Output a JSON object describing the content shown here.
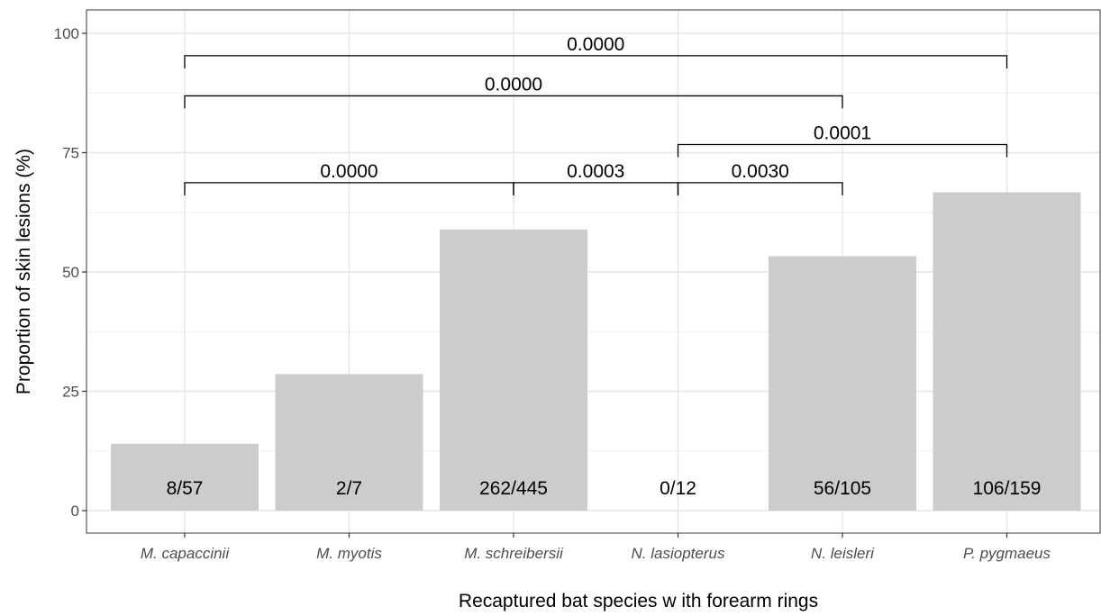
{
  "chart_data": {
    "type": "bar",
    "categories": [
      "M. capaccinii",
      "M. myotis",
      "M. schreibersii",
      "N. lasiopterus",
      "N. leisleri",
      "P. pygmaeus"
    ],
    "values": [
      14.0,
      28.6,
      58.9,
      0.0,
      53.3,
      66.7
    ],
    "bar_labels": [
      "8/57",
      "2/7",
      "262/445",
      "0/12",
      "56/105",
      "106/159"
    ],
    "xlabel": "Recaptured bat species w ith forearm rings",
    "ylabel": "Proportion of skin lesions (%)",
    "ylim": [
      0,
      100
    ],
    "yticks": [
      0,
      25,
      50,
      75,
      100
    ],
    "grid": true,
    "bar_color": "#cccccc",
    "comparisons": [
      {
        "from": "M. capaccinii",
        "to": "M. schreibersii",
        "label": "0.0000",
        "y": 68.7
      },
      {
        "from": "M. schreibersii",
        "to": "N. lasiopterus",
        "label": "0.0003",
        "y": 68.7
      },
      {
        "from": "N. lasiopterus",
        "to": "N. leisleri",
        "label": "0.0030",
        "y": 68.7
      },
      {
        "from": "N. lasiopterus",
        "to": "P. pygmaeus",
        "label": "0.0001",
        "y": 76.7
      },
      {
        "from": "M. capaccinii",
        "to": "N. leisleri",
        "label": "0.0000",
        "y": 86.9
      },
      {
        "from": "M. capaccinii",
        "to": "P. pygmaeus",
        "label": "0.0000",
        "y": 95.3
      }
    ]
  }
}
